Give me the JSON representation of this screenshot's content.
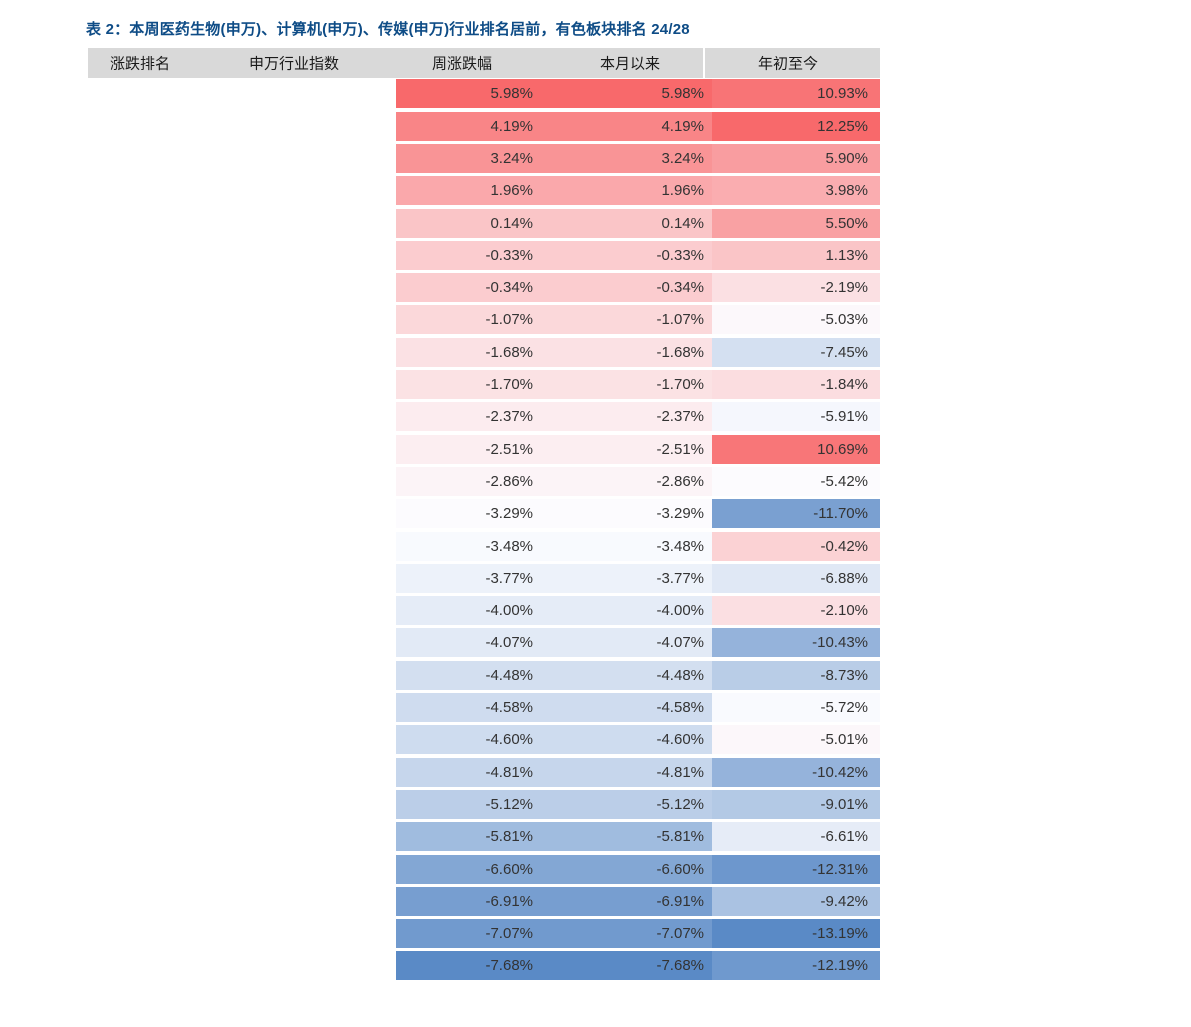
{
  "title": "表 2：本周医药生物(申万)、计算机(申万)、传媒(申万)行业排名居前，有色板块排名 24/28",
  "colors": {
    "title_text": "#0E4C86",
    "page_bg": "#FFFFFF",
    "header_bg": "#D9D9D9",
    "header_text": "#1A1A1A",
    "cell_text": "#333333",
    "heat_max": "#F8696B",
    "heat_mid": "#FCFCFF",
    "heat_min": "#5A8AC6"
  },
  "header": {
    "columns": [
      "涨跌排名",
      "申万行业指数",
      "周涨跌幅",
      "本月以来",
      "年初至今"
    ]
  },
  "rows": [
    {
      "rank": "",
      "index": "",
      "week": "5.98%",
      "month": "5.98%",
      "ytd": "10.93%",
      "week_color": "#F8696B",
      "month_color": "#F8696B",
      "ytd_color": "#F87476"
    },
    {
      "rank": "",
      "index": "",
      "week": "4.19%",
      "month": "4.19%",
      "ytd": "12.25%",
      "week_color": "#F98587",
      "month_color": "#F98587",
      "ytd_color": "#F8696B"
    },
    {
      "rank": "",
      "index": "",
      "week": "3.24%",
      "month": "3.24%",
      "ytd": "5.90%",
      "week_color": "#F99496",
      "month_color": "#F99496",
      "ytd_color": "#F99DA0"
    },
    {
      "rank": "",
      "index": "",
      "week": "1.96%",
      "month": "1.96%",
      "ytd": "3.98%",
      "week_color": "#FAA8AB",
      "month_color": "#FAA8AB",
      "ytd_color": "#FAADB0"
    },
    {
      "rank": "",
      "index": "",
      "week": "0.14%",
      "month": "0.14%",
      "ytd": "5.50%",
      "week_color": "#FAC5C7",
      "month_color": "#FAC5C7",
      "ytd_color": "#F9A1A3"
    },
    {
      "rank": "",
      "index": "",
      "week": "-0.33%",
      "month": "-0.33%",
      "ytd": "1.13%",
      "week_color": "#FBCCCF",
      "month_color": "#FBCCCF",
      "ytd_color": "#FAC5C7"
    },
    {
      "rank": "",
      "index": "",
      "week": "-0.34%",
      "month": "-0.34%",
      "ytd": "-2.19%",
      "week_color": "#FBCCCF",
      "month_color": "#FBCCCF",
      "ytd_color": "#FBE0E3"
    },
    {
      "rank": "",
      "index": "",
      "week": "-1.07%",
      "month": "-1.07%",
      "ytd": "-5.03%",
      "week_color": "#FBD8DA",
      "month_color": "#FBD8DA",
      "ytd_color": "#FCF8FB"
    },
    {
      "rank": "",
      "index": "",
      "week": "-1.68%",
      "month": "-1.68%",
      "ytd": "-7.45%",
      "week_color": "#FBE1E4",
      "month_color": "#FBE1E4",
      "ytd_color": "#D4E0F1"
    },
    {
      "rank": "",
      "index": "",
      "week": "-1.70%",
      "month": "-1.70%",
      "ytd": "-1.84%",
      "week_color": "#FBE2E4",
      "month_color": "#FBE2E4",
      "ytd_color": "#FBDDE0"
    },
    {
      "rank": "",
      "index": "",
      "week": "-2.37%",
      "month": "-2.37%",
      "ytd": "-5.91%",
      "week_color": "#FCECEF",
      "month_color": "#FCECEF",
      "ytd_color": "#F5F7FD"
    },
    {
      "rank": "",
      "index": "",
      "week": "-2.51%",
      "month": "-2.51%",
      "ytd": "10.69%",
      "week_color": "#FCEEF1",
      "month_color": "#FCEEF1",
      "ytd_color": "#F87678"
    },
    {
      "rank": "",
      "index": "",
      "week": "-2.86%",
      "month": "-2.86%",
      "ytd": "-5.42%",
      "week_color": "#FCF4F7",
      "month_color": "#FCF4F7",
      "ytd_color": "#FCFBFE"
    },
    {
      "rank": "",
      "index": "",
      "week": "-3.29%",
      "month": "-3.29%",
      "ytd": "-11.70%",
      "week_color": "#FCFBFE",
      "month_color": "#FCFBFE",
      "ytd_color": "#7AA0D1"
    },
    {
      "rank": "",
      "index": "",
      "week": "-3.48%",
      "month": "-3.48%",
      "ytd": "-0.42%",
      "week_color": "#F8FAFE",
      "month_color": "#F8FAFE",
      "ytd_color": "#FBD2D4"
    },
    {
      "rank": "",
      "index": "",
      "week": "-3.77%",
      "month": "-3.77%",
      "ytd": "-6.88%",
      "week_color": "#EDF2FA",
      "month_color": "#EDF2FA",
      "ytd_color": "#E0E8F5"
    },
    {
      "rank": "",
      "index": "",
      "week": "-4.00%",
      "month": "-4.00%",
      "ytd": "-2.10%",
      "week_color": "#E5ECF7",
      "month_color": "#E5ECF7",
      "ytd_color": "#FBDFE2"
    },
    {
      "rank": "",
      "index": "",
      "week": "-4.07%",
      "month": "-4.07%",
      "ytd": "-10.43%",
      "week_color": "#E2EAF6",
      "month_color": "#E2EAF6",
      "ytd_color": "#95B3DB"
    },
    {
      "rank": "",
      "index": "",
      "week": "-4.48%",
      "month": "-4.48%",
      "ytd": "-8.73%",
      "week_color": "#D3DFF0",
      "month_color": "#D3DFF0",
      "ytd_color": "#B9CDE7"
    },
    {
      "rank": "",
      "index": "",
      "week": "-4.58%",
      "month": "-4.58%",
      "ytd": "-5.72%",
      "week_color": "#CFDCEF",
      "month_color": "#CFDCEF",
      "ytd_color": "#F9FAFE"
    },
    {
      "rank": "",
      "index": "",
      "week": "-4.60%",
      "month": "-4.60%",
      "ytd": "-5.01%",
      "week_color": "#CEDCEF",
      "month_color": "#CEDCEF",
      "ytd_color": "#FCF7FA"
    },
    {
      "rank": "",
      "index": "",
      "week": "-4.81%",
      "month": "-4.81%",
      "ytd": "-10.42%",
      "week_color": "#C6D6EC",
      "month_color": "#C6D6EC",
      "ytd_color": "#95B3DB"
    },
    {
      "rank": "",
      "index": "",
      "week": "-5.12%",
      "month": "-5.12%",
      "ytd": "-9.01%",
      "week_color": "#BBCEE8",
      "month_color": "#BBCEE8",
      "ytd_color": "#B3C9E5"
    },
    {
      "rank": "",
      "index": "",
      "week": "-5.81%",
      "month": "-5.81%",
      "ytd": "-6.61%",
      "week_color": "#A0BCDF",
      "month_color": "#A0BCDF",
      "ytd_color": "#E6ECF7"
    },
    {
      "rank": "",
      "index": "",
      "week": "-6.60%",
      "month": "-6.60%",
      "ytd": "-12.31%",
      "week_color": "#83A7D4",
      "month_color": "#83A7D4",
      "ytd_color": "#6D97CD"
    },
    {
      "rank": "",
      "index": "",
      "week": "-6.91%",
      "month": "-6.91%",
      "ytd": "-9.42%",
      "week_color": "#779ED0",
      "month_color": "#779ED0",
      "ytd_color": "#AAC2E2"
    },
    {
      "rank": "",
      "index": "",
      "week": "-7.07%",
      "month": "-7.07%",
      "ytd": "-13.19%",
      "week_color": "#719ACE",
      "month_color": "#719ACE",
      "ytd_color": "#5A8AC6"
    },
    {
      "rank": "",
      "index": "",
      "week": "-7.68%",
      "month": "-7.68%",
      "ytd": "-12.19%",
      "week_color": "#5A8AC6",
      "month_color": "#5A8AC6",
      "ytd_color": "#6F99CE"
    }
  ],
  "chart_data": {
    "type": "table",
    "title": "表 2：本周医药生物(申万)、计算机(申万)、传媒(申万)行业排名居前，有色板块排名 24/28",
    "columns": [
      "涨跌排名",
      "申万行业指数",
      "周涨跌幅",
      "本月以来",
      "年初至今"
    ],
    "rows": [
      [
        "",
        "",
        5.98,
        5.98,
        10.93
      ],
      [
        "",
        "",
        4.19,
        4.19,
        12.25
      ],
      [
        "",
        "",
        3.24,
        3.24,
        5.9
      ],
      [
        "",
        "",
        1.96,
        1.96,
        3.98
      ],
      [
        "",
        "",
        0.14,
        0.14,
        5.5
      ],
      [
        "",
        "",
        -0.33,
        -0.33,
        1.13
      ],
      [
        "",
        "",
        -0.34,
        -0.34,
        -2.19
      ],
      [
        "",
        "",
        -1.07,
        -1.07,
        -5.03
      ],
      [
        "",
        "",
        -1.68,
        -1.68,
        -7.45
      ],
      [
        "",
        "",
        -1.7,
        -1.7,
        -1.84
      ],
      [
        "",
        "",
        -2.37,
        -2.37,
        -5.91
      ],
      [
        "",
        "",
        -2.51,
        -2.51,
        10.69
      ],
      [
        "",
        "",
        -2.86,
        -2.86,
        -5.42
      ],
      [
        "",
        "",
        -3.29,
        -3.29,
        -11.7
      ],
      [
        "",
        "",
        -3.48,
        -3.48,
        -0.42
      ],
      [
        "",
        "",
        -3.77,
        -3.77,
        -6.88
      ],
      [
        "",
        "",
        -4.0,
        -4.0,
        -2.1
      ],
      [
        "",
        "",
        -4.07,
        -4.07,
        -10.43
      ],
      [
        "",
        "",
        -4.48,
        -4.48,
        -8.73
      ],
      [
        "",
        "",
        -4.58,
        -4.58,
        -5.72
      ],
      [
        "",
        "",
        -4.6,
        -4.6,
        -5.01
      ],
      [
        "",
        "",
        -4.81,
        -4.81,
        -10.42
      ],
      [
        "",
        "",
        -5.12,
        -5.12,
        -9.01
      ],
      [
        "",
        "",
        -5.81,
        -5.81,
        -6.61
      ],
      [
        "",
        "",
        -6.6,
        -6.6,
        -12.31
      ],
      [
        "",
        "",
        -6.91,
        -6.91,
        -9.42
      ],
      [
        "",
        "",
        -7.07,
        -7.07,
        -13.19
      ],
      [
        "",
        "",
        -7.68,
        -7.68,
        -12.19
      ]
    ],
    "units": "percent",
    "heatmap": {
      "style": "3-color-scale",
      "max_color": "#F8696B",
      "mid_color": "#FCFCFF",
      "min_color": "#5A8AC6",
      "midpoint": "per-column 50th percentile",
      "week_range": [
        -7.68,
        5.98
      ],
      "ytd_range": [
        -13.19,
        12.25
      ]
    },
    "legend_position": "none",
    "grid": "white row separators"
  }
}
